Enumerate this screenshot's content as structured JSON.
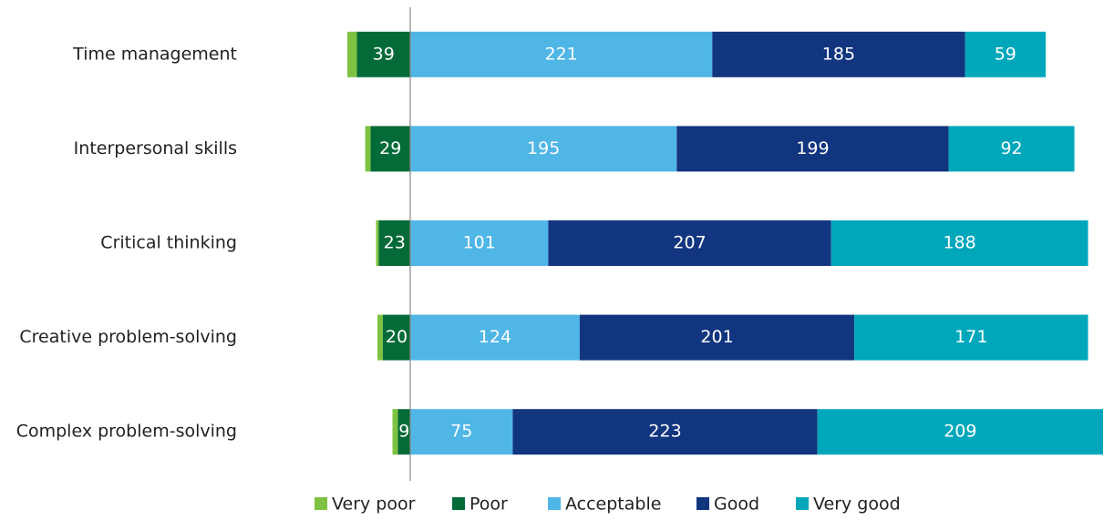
{
  "chart_data": {
    "type": "diverging-bar",
    "categories": [
      "Time management",
      "Interpersonal skills",
      "Critical thinking",
      "Creative problem-solving",
      "Complex problem-solving"
    ],
    "series": [
      {
        "name": "Very poor",
        "color": "#7dc242",
        "values": [
          7,
          4,
          2,
          4,
          4
        ]
      },
      {
        "name": "Poor",
        "color": "#046a38",
        "values": [
          39,
          29,
          23,
          20,
          9
        ]
      },
      {
        "name": "Acceptable",
        "color": "#4fb6e6",
        "values": [
          221,
          195,
          101,
          124,
          75
        ]
      },
      {
        "name": "Good",
        "color": "#12357f",
        "values": [
          185,
          199,
          207,
          201,
          223
        ]
      },
      {
        "name": "Very good",
        "color": "#00a7bb",
        "values": [
          59,
          92,
          188,
          171,
          209
        ]
      }
    ]
  }
}
